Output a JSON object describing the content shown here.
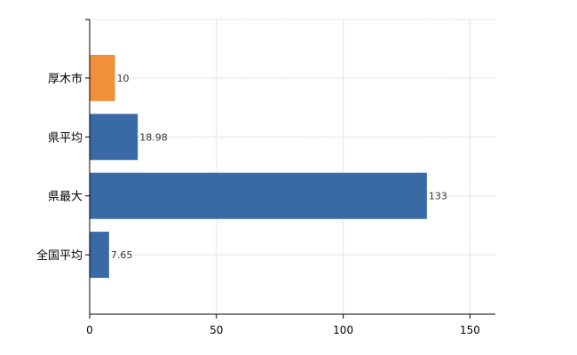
{
  "colors": {
    "default_bar": "#3a6aa6",
    "highlight_bar": "#f0913a"
  },
  "chart_data": {
    "type": "bar",
    "orientation": "horizontal",
    "categories": [
      "厚木市",
      "県平均",
      "県最大",
      "全国平均"
    ],
    "values": [
      10,
      18.98,
      133,
      7.65
    ],
    "value_labels": [
      "10",
      "18.98",
      "133",
      "7.65"
    ],
    "highlight": [
      true,
      false,
      false,
      false
    ],
    "x_ticks": [
      0,
      50,
      100,
      150
    ],
    "x_tick_labels": [
      "0",
      "50",
      "100",
      "150"
    ],
    "xlim": [
      0,
      160
    ],
    "grid": true,
    "title": "",
    "xlabel": "",
    "ylabel": ""
  }
}
